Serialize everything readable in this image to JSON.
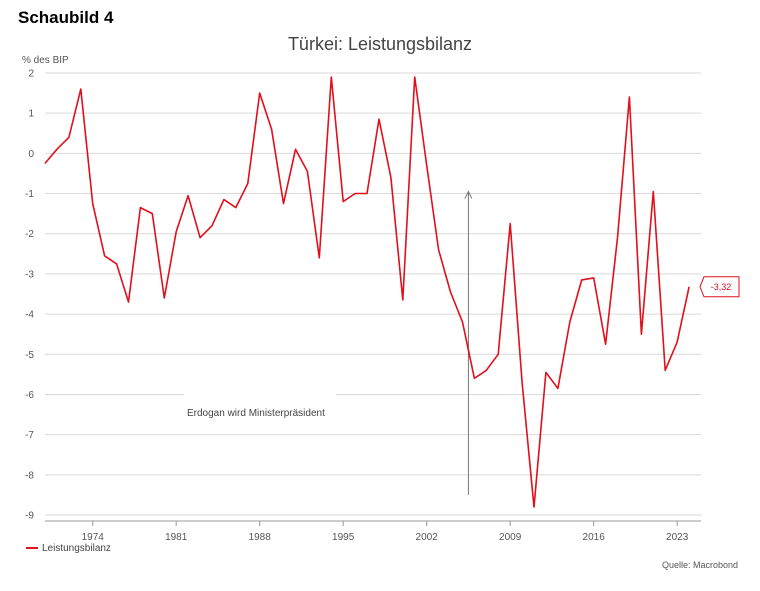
{
  "figure_label": "Schaubild 4",
  "source": "Quelle: Macrobond",
  "chart_data": {
    "type": "line",
    "title": "Türkei: Leistungsbilanz",
    "ylabel": "% des BIP",
    "xlabel": "",
    "ylim": [
      -9,
      2
    ],
    "yticks": [
      2,
      1,
      0,
      -1,
      -2,
      -3,
      -4,
      -5,
      -6,
      -7,
      -8,
      -9
    ],
    "xlim": [
      1970,
      2025
    ],
    "xticks": [
      1974,
      1981,
      1988,
      1995,
      2002,
      2009,
      2016,
      2023
    ],
    "grid": true,
    "legend_placement": "bottom-left",
    "series": [
      {
        "name": "Leistungsbilanz",
        "color": "#e0101c",
        "x": [
          1970,
          1971,
          1972,
          1973,
          1974,
          1975,
          1976,
          1977,
          1978,
          1979,
          1980,
          1981,
          1982,
          1983,
          1984,
          1985,
          1986,
          1987,
          1988,
          1989,
          1990,
          1991,
          1992,
          1993,
          1994,
          1995,
          1996,
          1997,
          1998,
          1999,
          2000,
          2001,
          2002,
          2003,
          2004,
          2005,
          2006,
          2007,
          2008,
          2009,
          2010,
          2011,
          2012,
          2013,
          2014,
          2015,
          2016,
          2017,
          2018,
          2019,
          2020,
          2021,
          2022,
          2023,
          2024
        ],
        "values": [
          -0.25,
          0.1,
          0.4,
          1.6,
          -1.25,
          -2.55,
          -2.75,
          -3.7,
          -1.35,
          -1.5,
          -3.6,
          -1.95,
          -1.05,
          -2.1,
          -1.8,
          -1.15,
          -1.35,
          -0.75,
          1.5,
          0.6,
          -1.25,
          0.1,
          -0.45,
          -2.6,
          1.9,
          -1.2,
          -1.0,
          -1.0,
          0.85,
          -0.6,
          -3.65,
          1.9,
          -0.3,
          -2.4,
          -3.45,
          -4.2,
          -5.6,
          -5.4,
          -5.0,
          -1.75,
          -5.7,
          -8.8,
          -5.45,
          -5.85,
          -4.2,
          -3.15,
          -3.1,
          -4.75,
          -2.1,
          1.4,
          -4.5,
          -0.95,
          -5.4,
          -4.7,
          -3.32
        ]
      }
    ],
    "last_value_label": "-3,32",
    "annotation": {
      "text": "Erdogan wird Ministerpräsident",
      "x": 2005.5,
      "y_from": -8.5,
      "y_to": -0.95
    }
  }
}
